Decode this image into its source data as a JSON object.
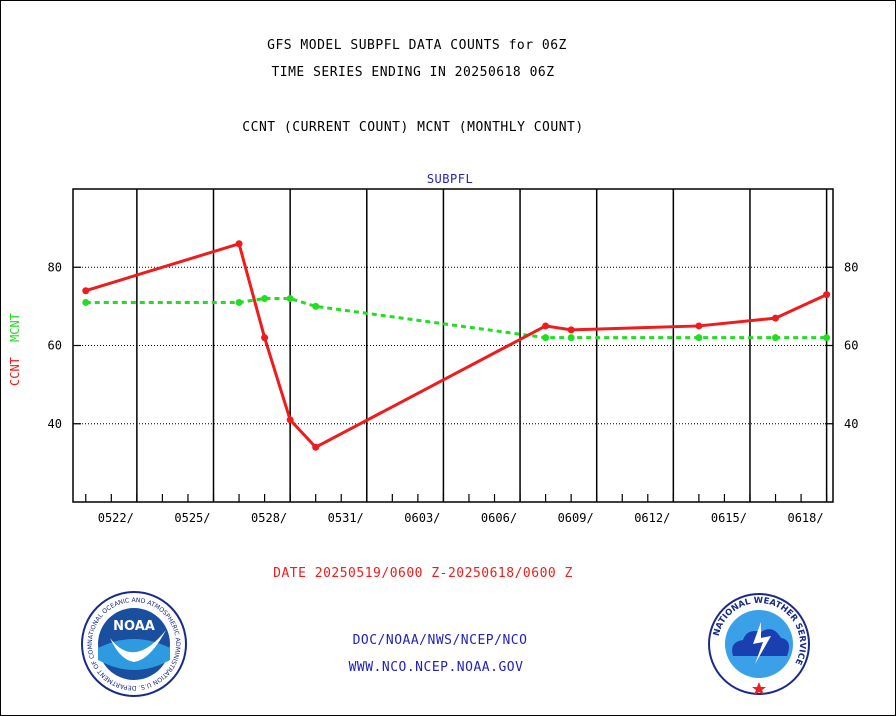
{
  "header": {
    "title_line1": "GFS MODEL SUBPFL DATA COUNTS for 06Z",
    "title_line2": "TIME SERIES ENDING IN 20250618 06Z",
    "subtitle": "CCNT (CURRENT COUNT) MCNT (MONTHLY COUNT)"
  },
  "footer": {
    "date_range": "DATE 20250519/0600 Z-20250618/0600 Z",
    "org_path": "DOC/NOAA/NWS/NCEP/NCO",
    "website": "WWW.NCO.NCEP.NOAA.GOV"
  },
  "logos": {
    "left": {
      "icon": "noaa-logo-icon",
      "center_text": "NOAA",
      "ring_text": "NATIONAL OCEANIC AND ATMOSPHERIC ADMINISTRATION U.S. DEPARTMENT OF COMMERCE"
    },
    "right": {
      "icon": "nws-logo-icon",
      "ring_text": "NATIONAL WEATHER SERVICE"
    }
  },
  "colors": {
    "ccnt": "#ee1c1c",
    "mcnt": "#22dd22",
    "label_blue": "#2222bb",
    "grid": "#000000"
  },
  "chart_data": {
    "type": "line",
    "title": "SUBPFL",
    "ylabel_ccnt": "CCNT",
    "ylabel_mcnt": "MCNT",
    "xlim": [
      "2025-05-19 12Z",
      "2025-06-18 06Z"
    ],
    "ylim": [
      20,
      100
    ],
    "yticks": [
      40,
      60,
      80
    ],
    "grid": true,
    "xtick_labels": [
      "0522/",
      "0525/",
      "0528/",
      "0531/",
      "0603/",
      "0606/",
      "0609/",
      "0612/",
      "0615/",
      "0618/"
    ],
    "series": [
      {
        "name": "CCNT",
        "style": "solid",
        "x": [
          "2025-05-20",
          "2025-05-26",
          "2025-05-27",
          "2025-05-28",
          "2025-05-29",
          "2025-06-07",
          "2025-06-08",
          "2025-06-13",
          "2025-06-16",
          "2025-06-18"
        ],
        "values": [
          74,
          86,
          62,
          41,
          34,
          65,
          64,
          65,
          67,
          73
        ]
      },
      {
        "name": "MCNT",
        "style": "dotted",
        "x": [
          "2025-05-20",
          "2025-05-26",
          "2025-05-27",
          "2025-05-28",
          "2025-05-29",
          "2025-06-07",
          "2025-06-08",
          "2025-06-13",
          "2025-06-16",
          "2025-06-18"
        ],
        "values": [
          71,
          71,
          72,
          72,
          70,
          62,
          62,
          62,
          62,
          62
        ]
      }
    ]
  }
}
